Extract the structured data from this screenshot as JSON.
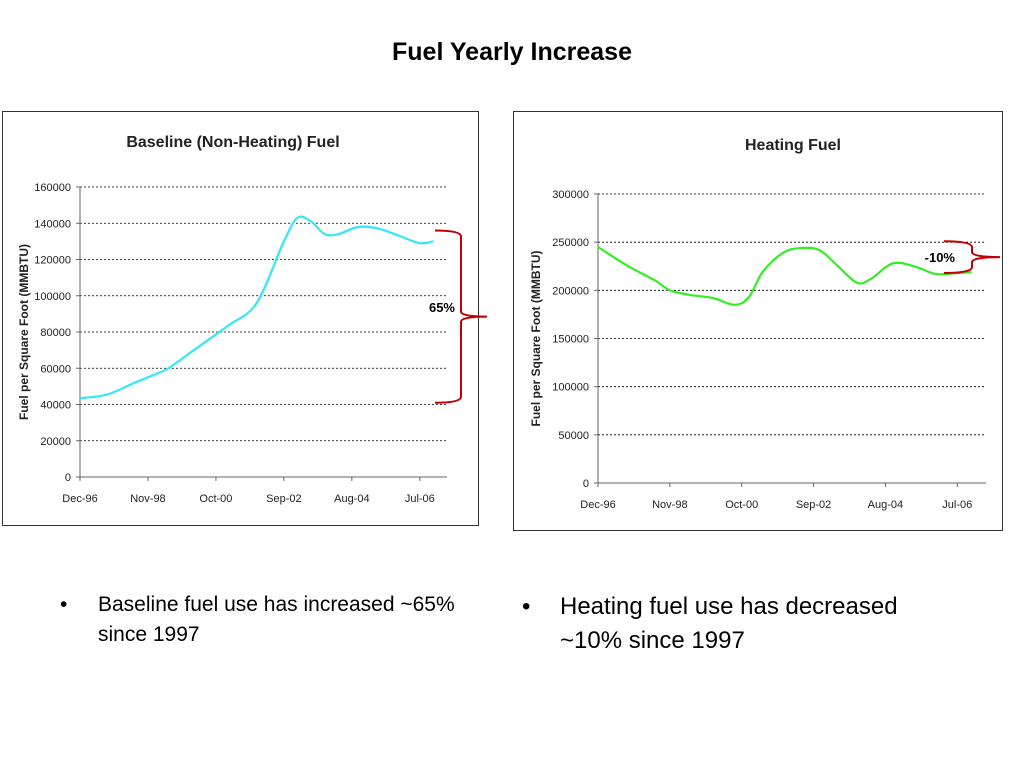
{
  "slide": {
    "title": "Fuel Yearly Increase"
  },
  "chart_data": [
    {
      "type": "line",
      "title": "Baseline (Non-Heating) Fuel",
      "ylabel": "Fuel per Square Foot (MMBTU)",
      "xlabel": "",
      "x_tick_labels": [
        "Dec-96",
        "Nov-98",
        "Oct-00",
        "Sep-02",
        "Aug-04",
        "Jul-06"
      ],
      "ylim": [
        0,
        160000
      ],
      "y_ticks": [
        0,
        20000,
        40000,
        60000,
        80000,
        100000,
        120000,
        140000,
        160000
      ],
      "grid": "horizontal dashed",
      "line_color": "#33e8f5",
      "bracket_color": "#c00000",
      "series": [
        {
          "x": [
            0,
            0.4,
            0.8,
            1.0,
            1.3,
            1.6,
            1.9,
            2.2,
            2.6,
            3.0,
            3.2,
            3.4,
            3.6,
            3.8,
            4.1,
            4.4,
            4.7,
            5.0,
            5.2
          ],
          "values": [
            43500,
            45500,
            52000,
            55000,
            60000,
            68000,
            76000,
            84000,
            96000,
            130000,
            143000,
            141000,
            134000,
            134000,
            138000,
            137000,
            133000,
            129000,
            130000
          ]
        }
      ],
      "annotation": {
        "text": "65%",
        "from": 41000,
        "to": 136000
      }
    },
    {
      "type": "line",
      "title": "Heating Fuel",
      "ylabel": "Fuel per Square Foot (MMBTU)",
      "xlabel": "",
      "x_tick_labels": [
        "Dec-96",
        "Nov-98",
        "Oct-00",
        "Sep-02",
        "Aug-04",
        "Jul-06"
      ],
      "ylim": [
        0,
        300000
      ],
      "y_ticks": [
        0,
        50000,
        100000,
        150000,
        200000,
        250000,
        300000
      ],
      "grid": "horizontal dashed",
      "line_color": "#33ee22",
      "bracket_color": "#c00000",
      "series": [
        {
          "x": [
            0,
            0.4,
            0.8,
            1.0,
            1.3,
            1.6,
            1.9,
            2.1,
            2.3,
            2.6,
            2.9,
            3.1,
            3.3,
            3.6,
            3.8,
            4.1,
            4.4,
            4.7,
            5.0,
            5.2
          ],
          "values": [
            245000,
            226000,
            210000,
            200000,
            195000,
            192000,
            185000,
            193000,
            220000,
            240000,
            244000,
            241000,
            228000,
            208000,
            212000,
            228000,
            225000,
            217000,
            218000,
            219000
          ]
        }
      ],
      "annotation": {
        "text": "-10%",
        "from": 218000,
        "to": 251000
      }
    }
  ],
  "bullets": {
    "left": "Baseline fuel use has increased ~65% since 1997",
    "right": "Heating fuel use has decreased ~10% since 1997",
    "marker": "•"
  }
}
